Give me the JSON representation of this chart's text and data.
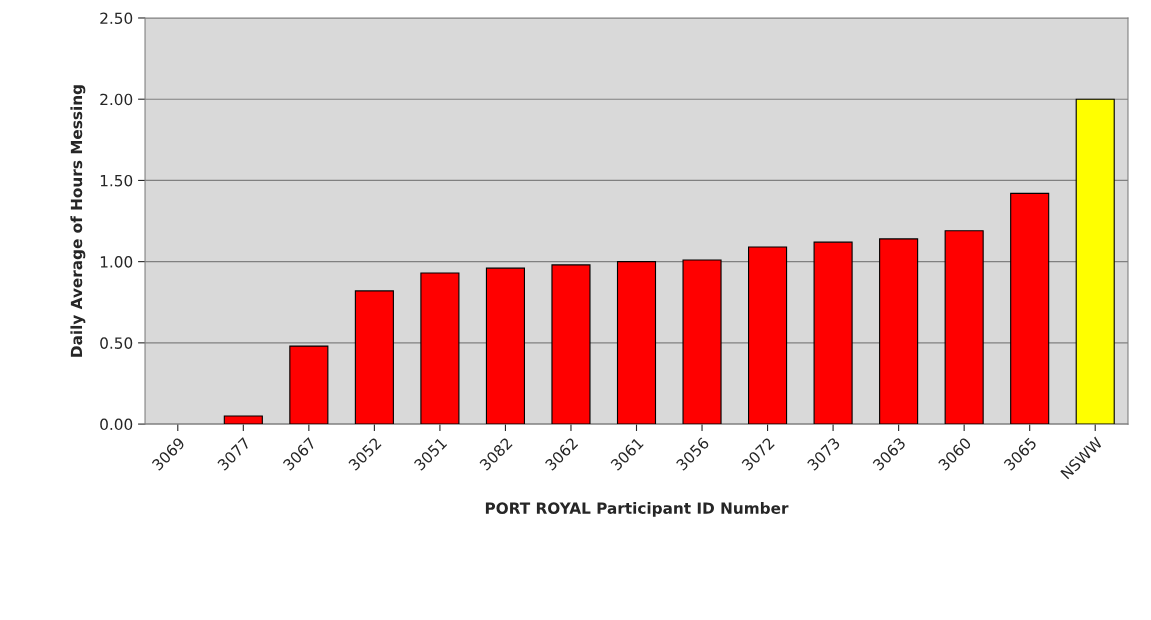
{
  "chart_data": {
    "type": "bar",
    "xlabel": "PORT ROYAL Participant ID Number",
    "ylabel": "Daily Average of Hours Messing",
    "categories": [
      "3069",
      "3077",
      "3067",
      "3052",
      "3051",
      "3082",
      "3062",
      "3061",
      "3056",
      "3072",
      "3073",
      "3063",
      "3060",
      "3065",
      "NSWW"
    ],
    "values": [
      0,
      0.05,
      0.48,
      0.82,
      0.93,
      0.96,
      0.98,
      1.0,
      1.01,
      1.09,
      1.12,
      1.14,
      1.19,
      1.42,
      2.0
    ],
    "colors": [
      "#ff0000",
      "#ff0000",
      "#ff0000",
      "#ff0000",
      "#ff0000",
      "#ff0000",
      "#ff0000",
      "#ff0000",
      "#ff0000",
      "#ff0000",
      "#ff0000",
      "#ff0000",
      "#ff0000",
      "#ff0000",
      "#ffff00"
    ],
    "ylim": [
      0,
      2.5
    ],
    "yticks": [
      {
        "value": 0,
        "label": "0.00"
      },
      {
        "value": 0.5,
        "label": "0.50"
      },
      {
        "value": 1,
        "label": "1.00"
      },
      {
        "value": 1.5,
        "label": "1.50"
      },
      {
        "value": 2,
        "label": "2.00"
      },
      {
        "value": 2.5,
        "label": "2.50"
      }
    ],
    "grid": "y"
  }
}
